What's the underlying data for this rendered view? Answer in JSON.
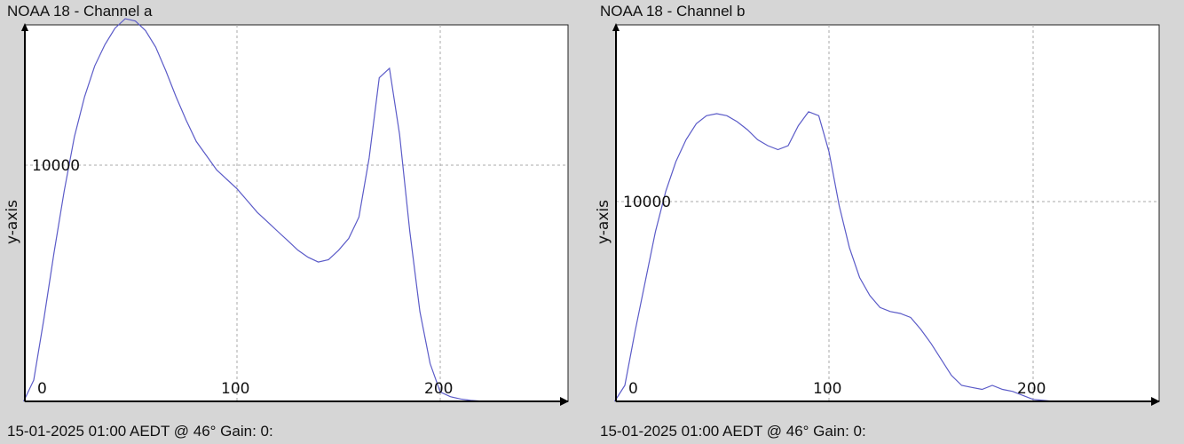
{
  "chart_data": [
    {
      "type": "line",
      "title": "NOAA 18 - Channel a",
      "ylabel": "y-axis",
      "xlabel": "",
      "xlim": [
        0,
        255
      ],
      "ylim": [
        0,
        16100
      ],
      "grid": true,
      "x_ticks": [
        0,
        100,
        200
      ],
      "y_ticks": [
        10000
      ],
      "series": [
        {
          "color": "#5b5bc8",
          "x": [
            -5,
            0,
            5,
            10,
            15,
            20,
            25,
            30,
            35,
            40,
            45,
            50,
            55,
            60,
            65,
            70,
            75,
            80,
            85,
            90,
            95,
            100,
            105,
            110,
            115,
            120,
            125,
            130,
            135,
            140,
            145,
            150,
            155,
            160,
            165,
            170,
            175,
            180,
            185,
            190,
            195,
            200,
            205,
            210,
            215,
            220,
            222
          ],
          "y": [
            0,
            900,
            3500,
            6300,
            8900,
            11200,
            12900,
            14200,
            15100,
            15800,
            16200,
            16100,
            15700,
            15000,
            14000,
            12900,
            11900,
            11000,
            10400,
            9800,
            9400,
            9000,
            8500,
            8000,
            7600,
            7200,
            6800,
            6400,
            6100,
            5900,
            6000,
            6400,
            6900,
            7800,
            10300,
            13700,
            14100,
            11300,
            7200,
            3800,
            1600,
            400,
            200,
            100,
            40,
            10,
            0
          ]
        }
      ],
      "status_text": "15-01-2025 01:00 AEDT @ 46° Gain: 0:"
    },
    {
      "type": "line",
      "title": "NOAA 18 - Channel b",
      "ylabel": "y-axis",
      "xlabel": "",
      "xlim": [
        0,
        255
      ],
      "ylim": [
        0,
        14800
      ],
      "grid": true,
      "x_ticks": [
        0,
        100,
        200
      ],
      "y_ticks": [
        10000
      ],
      "series": [
        {
          "color": "#5b5bc8",
          "x": [
            -5,
            0,
            5,
            10,
            15,
            20,
            25,
            30,
            35,
            40,
            45,
            50,
            55,
            60,
            65,
            70,
            75,
            80,
            85,
            90,
            95,
            100,
            105,
            110,
            115,
            120,
            125,
            130,
            135,
            140,
            145,
            150,
            155,
            160,
            165,
            170,
            175,
            180,
            185,
            190,
            195,
            200,
            205,
            210
          ],
          "y": [
            0,
            800,
            3500,
            6000,
            8500,
            10500,
            12000,
            13100,
            13900,
            14300,
            14400,
            14300,
            14000,
            13600,
            13100,
            12800,
            12600,
            12800,
            13800,
            14500,
            14300,
            12500,
            9800,
            7700,
            6200,
            5300,
            4700,
            4500,
            4400,
            4200,
            3600,
            2900,
            2100,
            1300,
            800,
            700,
            600,
            800,
            600,
            500,
            300,
            100,
            50,
            0
          ]
        }
      ],
      "status_text": "15-01-2025 01:00 AEDT @ 46° Gain: 0:"
    }
  ]
}
